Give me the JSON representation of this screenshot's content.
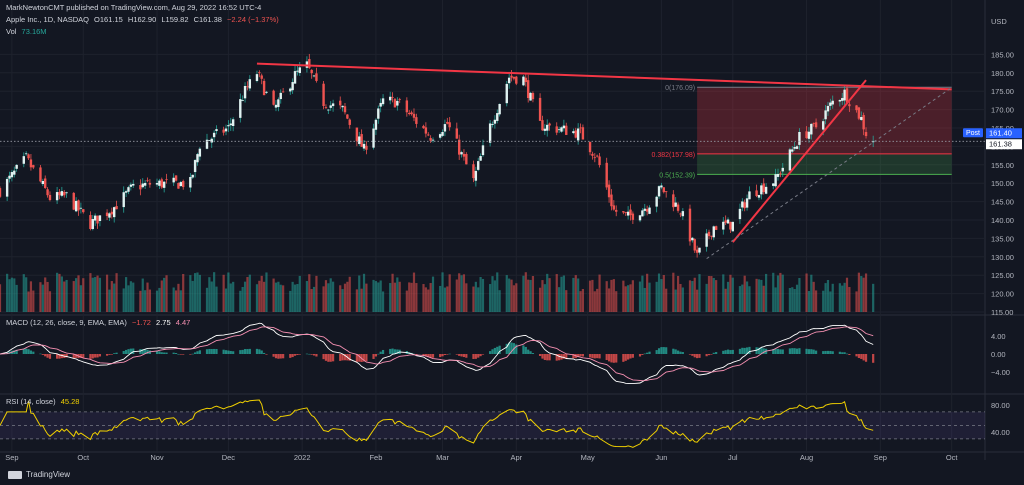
{
  "header": {
    "published_line": "MarkNewtonCMT published on TradingView.com, Aug 29, 2022 16:52 UTC-4"
  },
  "symbol_legend": {
    "name": "Apple Inc., 1D, NASDAQ",
    "open": "O161.15",
    "high": "H162.90",
    "low": "L159.82",
    "close": "C161.38",
    "change": "−2.24 (−1.37%)"
  },
  "vol_legend": {
    "label": "Vol",
    "value": "73.16M"
  },
  "currency": "USD",
  "macd_legend": {
    "label": "MACD (12, 26, close, 9, EMA, EMA)",
    "v1": "−1.72",
    "v2": "2.75",
    "v3": "4.47"
  },
  "rsi_legend": {
    "label": "RSI (14, close)",
    "value": "45.28"
  },
  "price_badges": {
    "post_label": "Post",
    "post_value": "161.40",
    "close_value": "161.38"
  },
  "fib_levels": [
    {
      "label": "0(176.09)",
      "value": 176.09
    },
    {
      "label": "0.382(157.98)",
      "value": 157.98
    },
    {
      "label": "0.5(152.39)",
      "value": 152.39
    }
  ],
  "footer": {
    "brand": "TradingView"
  },
  "colors": {
    "bg": "#131722",
    "up": "#26a69a",
    "down": "#ef5350",
    "trend": "#f23645",
    "rsi": "#f0d000",
    "fib_green": "#4caf50"
  },
  "chart_data": [
    {
      "type": "candlestick",
      "title": "Apple Inc., 1D, NASDAQ",
      "ylim": [
        115,
        190
      ],
      "y_ticks": [
        "185.00",
        "180.00",
        "175.00",
        "170.00",
        "165.00",
        "160.00",
        "155.00",
        "150.00",
        "145.00",
        "140.00",
        "135.00",
        "130.00",
        "125.00",
        "120.00",
        "115.00"
      ],
      "x_ticks": [
        "Sep",
        "Oct",
        "Nov",
        "Dec",
        "2022",
        "Feb",
        "Mar",
        "Apr",
        "May",
        "Jun",
        "Jul",
        "Aug",
        "Sep",
        "Oct"
      ],
      "x_range": [
        "2021-08-27",
        "2022-10-15"
      ],
      "close_anchors": [
        [
          "2021-08-27",
          148
        ],
        [
          "2021-09-07",
          156.7
        ],
        [
          "2021-09-17",
          146
        ],
        [
          "2021-09-24",
          146.5
        ],
        [
          "2021-10-04",
          139
        ],
        [
          "2021-10-14",
          143.5
        ],
        [
          "2021-10-22",
          149
        ],
        [
          "2021-10-29",
          149.8
        ],
        [
          "2021-11-15",
          150
        ],
        [
          "2021-11-19",
          160.5
        ],
        [
          "2021-12-01",
          165
        ],
        [
          "2021-12-08",
          175
        ],
        [
          "2021-12-13",
          180
        ],
        [
          "2021-12-20",
          169.8
        ],
        [
          "2021-12-29",
          179.4
        ],
        [
          "2022-01-03",
          182
        ],
        [
          "2022-01-10",
          172
        ],
        [
          "2022-01-18",
          170
        ],
        [
          "2022-01-27",
          159
        ],
        [
          "2022-02-04",
          172.4
        ],
        [
          "2022-02-10",
          172.1
        ],
        [
          "2022-02-24",
          162.7
        ],
        [
          "2022-03-03",
          166.2
        ],
        [
          "2022-03-14",
          150.6
        ],
        [
          "2022-03-21",
          165.4
        ],
        [
          "2022-03-29",
          178.9
        ],
        [
          "2022-04-04",
          178.4
        ],
        [
          "2022-04-11",
          165.8
        ],
        [
          "2022-04-28",
          163.6
        ],
        [
          "2022-05-05",
          156.8
        ],
        [
          "2022-05-12",
          142.6
        ],
        [
          "2022-05-18",
          140.8
        ],
        [
          "2022-05-26",
          143.8
        ],
        [
          "2022-06-01",
          148.7
        ],
        [
          "2022-06-09",
          142.6
        ],
        [
          "2022-06-16",
          130.1
        ],
        [
          "2022-06-23",
          138.3
        ],
        [
          "2022-07-01",
          138.9
        ],
        [
          "2022-07-08",
          147
        ],
        [
          "2022-07-19",
          151
        ],
        [
          "2022-07-29",
          162.5
        ],
        [
          "2022-08-05",
          165.4
        ],
        [
          "2022-08-12",
          172.1
        ],
        [
          "2022-08-17",
          174.6
        ],
        [
          "2022-08-24",
          167.5
        ],
        [
          "2022-08-26",
          163.6
        ],
        [
          "2022-08-29",
          161.38
        ]
      ],
      "annotations": {
        "upper_trendline": [
          [
            "2021-12-13",
            182.5
          ],
          [
            "2022-10-01",
            175.5
          ]
        ],
        "rising_trendline": [
          [
            "2022-07-01",
            134
          ],
          [
            "2022-08-26",
            178
          ]
        ],
        "dashed_trendline": [
          [
            "2022-06-20",
            129.5
          ],
          [
            "2022-10-01",
            176
          ]
        ],
        "current_price_line": 161.38
      }
    },
    {
      "type": "bar",
      "title": "Vol",
      "last_value": "73.16M"
    },
    {
      "type": "line",
      "title": "MACD (12, 26, close, 9, EMA, EMA)",
      "ylim": [
        -8,
        8
      ],
      "y_ticks": [
        "4.00",
        "0.00",
        "−4.00"
      ],
      "last_values": {
        "histogram": -1.72,
        "macd": 2.75,
        "signal": 4.47
      }
    },
    {
      "type": "line",
      "title": "RSI (14, close)",
      "ylim": [
        15,
        92
      ],
      "y_ticks": [
        "80.00",
        "40.00"
      ],
      "band": [
        30,
        70
      ],
      "last_value": 45.28
    }
  ]
}
